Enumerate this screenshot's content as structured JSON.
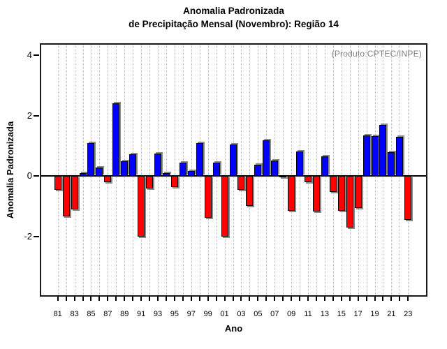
{
  "chart_data": {
    "type": "bar",
    "title_line1": "Anomalia Padronizada",
    "title_line2": "de Precipitação Mensal (Novembro): Região 14",
    "ylabel": "Anomalia Padronizada",
    "xlabel": "Ano",
    "annotation": "(Produto:CPTEC/INPE)",
    "categories": [
      "81",
      "82",
      "83",
      "84",
      "85",
      "86",
      "87",
      "88",
      "89",
      "90",
      "91",
      "92",
      "93",
      "94",
      "95",
      "96",
      "97",
      "98",
      "99",
      "00",
      "01",
      "02",
      "03",
      "04",
      "05",
      "06",
      "07",
      "08",
      "09",
      "10",
      "11",
      "12",
      "13",
      "14",
      "15",
      "16",
      "17",
      "18",
      "19",
      "20",
      "21",
      "22",
      "23"
    ],
    "values": [
      -0.45,
      -1.35,
      -1.1,
      0.1,
      1.1,
      0.28,
      -0.2,
      2.4,
      0.5,
      0.72,
      -2.0,
      -0.42,
      0.75,
      0.1,
      -0.36,
      0.45,
      0.17,
      1.1,
      -1.38,
      0.45,
      -2.0,
      1.05,
      -0.45,
      -1.0,
      0.38,
      1.18,
      0.52,
      -0.05,
      -1.15,
      0.82,
      -0.2,
      -1.18,
      0.65,
      -0.52,
      -1.15,
      -1.7,
      -1.05,
      1.35,
      1.32,
      1.7,
      0.8,
      1.3,
      -1.45
    ],
    "x_tick_label_step": 2,
    "yticks": [
      4,
      2,
      0,
      -2
    ],
    "ylim": [
      -4,
      4.4
    ],
    "grid": "vertical-dotted",
    "legend": "none",
    "colors": {
      "positive": "#0000ff",
      "negative": "#ff0000",
      "shadow": "#8a8a8a",
      "grid": "#b9b9b9",
      "frame": "#1a1a1a",
      "annotation": "#7f7f7f",
      "background": "#ffffff"
    }
  }
}
